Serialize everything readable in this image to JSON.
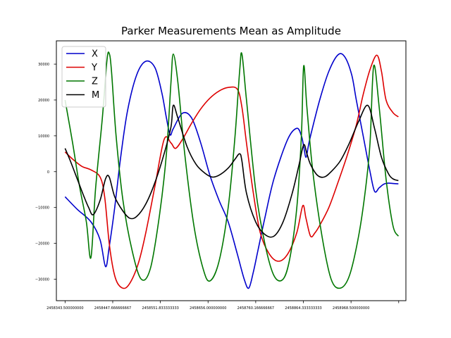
{
  "chart_data": {
    "type": "line",
    "title": "Parker Measurements Mean as Amplitude",
    "xlabel": "",
    "ylabel": "",
    "xlim": [
      2458324.5,
      2459088.4
    ],
    "ylim": [
      -36000,
      36500
    ],
    "grid": false,
    "legend_position": "top-left",
    "x_ticks": [
      2458343.5,
      2458447.666666667,
      2458551.833333333,
      2458656.0,
      2458760.166666667,
      2458864.333333333,
      2458968.5,
      2459072.666666667
    ],
    "x_tick_labels": [
      "2458343.500000000",
      "2458447.666666667",
      "2458551.833333333",
      "2458656.000000000",
      "2458760.166666667",
      "2458864.333333333",
      "2458968.500000000",
      ""
    ],
    "y_ticks": [
      -30000,
      -20000,
      -10000,
      0,
      10000,
      20000,
      30000
    ],
    "y_tick_labels": [
      "−30000",
      "−20000",
      "−10000",
      "0",
      "10000",
      "20000",
      "30000"
    ],
    "series": [
      {
        "name": "X",
        "color": "#0000cc",
        "x": [
          2458343.5,
          2458370,
          2458400,
          2458420,
          2458432,
          2458440,
          2458452,
          2458465,
          2458480,
          2458500,
          2458520,
          2458540,
          2458555,
          2458565,
          2458573,
          2458580,
          2458600,
          2458620,
          2458640,
          2458660,
          2458680,
          2458700,
          2458720,
          2458735,
          2458745,
          2458755,
          2458765,
          2458780,
          2458800,
          2458830,
          2458850,
          2458860,
          2458865,
          2458870,
          2458875,
          2458880,
          2458900,
          2458920,
          2458940,
          2458955,
          2458970,
          2458980,
          2458995,
          2459010,
          2459020,
          2459030,
          2459040,
          2459050,
          2459060,
          2459072
        ],
        "y": [
          -7000,
          -10500,
          -14000,
          -19000,
          -26500,
          -21000,
          -10000,
          4000,
          17000,
          27000,
          30800,
          29000,
          22000,
          15000,
          10300,
          12000,
          16300,
          15000,
          8000,
          -1000,
          -8000,
          -14000,
          -23000,
          -30000,
          -32500,
          -28000,
          -22000,
          -13000,
          -2000,
          9000,
          12100,
          10000,
          7000,
          4000,
          7000,
          10000,
          20000,
          28000,
          32600,
          32000,
          27000,
          20000,
          10000,
          0,
          -5500,
          -4500,
          -3500,
          -3200,
          -3300,
          -3400
        ]
      },
      {
        "name": "Y",
        "color": "#dd0000",
        "x": [
          2458343.5,
          2458360,
          2458380,
          2458400,
          2458420,
          2458430,
          2458440,
          2458450,
          2458460,
          2458475,
          2458490,
          2458505,
          2458520,
          2458540,
          2458560,
          2458575,
          2458585,
          2458600,
          2458620,
          2458640,
          2458660,
          2458680,
          2458700,
          2458720,
          2458730,
          2458740,
          2458755,
          2458770,
          2458790,
          2458810,
          2458830,
          2458850,
          2458863,
          2458870,
          2458880,
          2458890,
          2458900,
          2458920,
          2458940,
          2458960,
          2458980,
          2458995,
          2459010,
          2459025,
          2459035,
          2459045,
          2459060,
          2459072
        ],
        "y": [
          5500,
          3500,
          1500,
          500,
          -1500,
          -7000,
          -20000,
          -28000,
          -31500,
          -32500,
          -30000,
          -25000,
          -17000,
          -4000,
          9000,
          8000,
          6500,
          9000,
          13500,
          17500,
          20500,
          22500,
          23500,
          23000,
          18000,
          8000,
          -6000,
          -17000,
          -23000,
          -25000,
          -23000,
          -17000,
          -9500,
          -13000,
          -18000,
          -17000,
          -15000,
          -10000,
          -3000,
          4500,
          13000,
          21500,
          28500,
          32500,
          28000,
          20000,
          16500,
          15300
        ]
      },
      {
        "name": "Z",
        "color": "#007700",
        "x": [
          2458343.5,
          2458360,
          2458375,
          2458390,
          2458400,
          2458410,
          2458425,
          2458435,
          2458440,
          2458445,
          2458455,
          2458470,
          2458490,
          2458510,
          2458530,
          2458550,
          2458565,
          2458575,
          2458580,
          2458590,
          2458605,
          2458625,
          2458645,
          2458660,
          2458680,
          2458700,
          2458715,
          2458725,
          2458730,
          2458740,
          2458760,
          2458780,
          2458800,
          2458820,
          2458835,
          2458850,
          2458860,
          2458865,
          2458872,
          2458885,
          2458905,
          2458925,
          2458945,
          2458965,
          2458985,
          2459000,
          2459010,
          2459018,
          2459030,
          2459045,
          2459060,
          2459072
        ],
        "y": [
          20000,
          8000,
          -4000,
          -14000,
          -24000,
          -5000,
          15000,
          31000,
          33000,
          28000,
          10000,
          -8000,
          -22000,
          -30000,
          -27000,
          -12000,
          5000,
          25000,
          32800,
          25000,
          5000,
          -15000,
          -27000,
          -30500,
          -25000,
          -10000,
          10000,
          28000,
          32800,
          20000,
          -5000,
          -20000,
          -29000,
          -30000,
          -24000,
          -10000,
          10000,
          29500,
          18000,
          0,
          -18000,
          -30000,
          -32500,
          -29000,
          -18000,
          -5000,
          8000,
          29500,
          18000,
          -2000,
          -15000,
          -18000
        ]
      },
      {
        "name": "M",
        "color": "#000000",
        "x": [
          2458343.5,
          2458355,
          2458370,
          2458385,
          2458395,
          2458405,
          2458420,
          2458432,
          2458440,
          2458452,
          2458470,
          2458485,
          2458500,
          2458520,
          2458540,
          2458560,
          2458575,
          2458580,
          2458590,
          2458610,
          2458630,
          2458650,
          2458665,
          2458680,
          2458700,
          2458715,
          2458725,
          2458730,
          2458740,
          2458760,
          2458780,
          2458800,
          2458820,
          2458840,
          2458855,
          2458865,
          2458872,
          2458880,
          2458895,
          2458910,
          2458925,
          2458945,
          2458965,
          2458985,
          2459005,
          2459020,
          2459035,
          2459050,
          2459060,
          2459072
        ],
        "y": [
          6500,
          3000,
          -2000,
          -7000,
          -10000,
          -12000,
          -8000,
          -2000,
          -1500,
          -7000,
          -11000,
          -13000,
          -12500,
          -9000,
          -3000,
          5000,
          12500,
          18500,
          15000,
          7000,
          2000,
          -500,
          -1500,
          -1000,
          1000,
          3500,
          5000,
          3000,
          -6000,
          -14000,
          -17500,
          -18000,
          -14000,
          -6000,
          2000,
          7500,
          5000,
          2000,
          -1000,
          -1500,
          0,
          3000,
          8000,
          14000,
          18500,
          12000,
          4000,
          -500,
          -2000,
          -2500
        ]
      }
    ]
  }
}
